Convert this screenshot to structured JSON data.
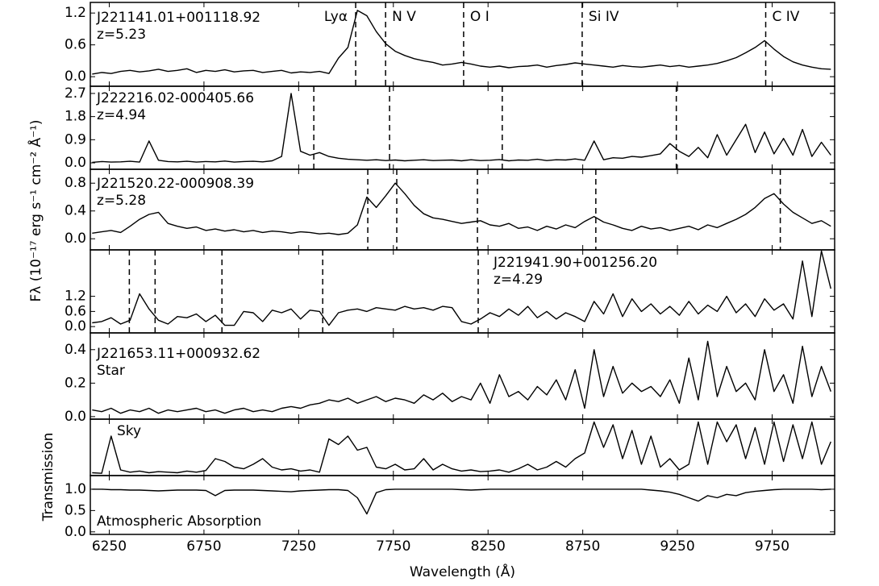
{
  "chart_data": [
    {
      "type": "line",
      "title": "J221141.01+001118.92",
      "subtitle": "z=5.23",
      "color": "#000000",
      "x": [
        6160,
        6210,
        6260,
        6310,
        6360,
        6410,
        6460,
        6510,
        6560,
        6610,
        6660,
        6710,
        6760,
        6810,
        6860,
        6910,
        6960,
        7010,
        7060,
        7110,
        7160,
        7210,
        7260,
        7310,
        7360,
        7410,
        7460,
        7510,
        7560,
        7610,
        7660,
        7710,
        7760,
        7810,
        7860,
        7910,
        7960,
        8010,
        8060,
        8110,
        8160,
        8210,
        8260,
        8310,
        8360,
        8410,
        8460,
        8510,
        8560,
        8610,
        8660,
        8710,
        8760,
        8810,
        8860,
        8910,
        8960,
        9010,
        9060,
        9110,
        9160,
        9210,
        9260,
        9310,
        9360,
        9410,
        9460,
        9510,
        9560,
        9610,
        9660,
        9710,
        9760,
        9810,
        9860,
        9910,
        9960,
        10010,
        10060
      ],
      "values": [
        0.05,
        0.08,
        0.06,
        0.1,
        0.12,
        0.09,
        0.11,
        0.14,
        0.1,
        0.12,
        0.15,
        0.08,
        0.12,
        0.1,
        0.13,
        0.09,
        0.11,
        0.12,
        0.08,
        0.1,
        0.12,
        0.07,
        0.09,
        0.08,
        0.1,
        0.06,
        0.35,
        0.55,
        1.25,
        1.15,
        0.85,
        0.62,
        0.48,
        0.4,
        0.34,
        0.3,
        0.27,
        0.22,
        0.24,
        0.27,
        0.24,
        0.2,
        0.18,
        0.2,
        0.17,
        0.19,
        0.2,
        0.22,
        0.18,
        0.21,
        0.23,
        0.26,
        0.24,
        0.22,
        0.2,
        0.18,
        0.21,
        0.19,
        0.18,
        0.2,
        0.22,
        0.19,
        0.21,
        0.18,
        0.2,
        0.22,
        0.25,
        0.3,
        0.36,
        0.45,
        0.55,
        0.68,
        0.52,
        0.38,
        0.28,
        0.22,
        0.18,
        0.15,
        0.14
      ],
      "xlim": [
        6150,
        10080
      ],
      "ylim": [
        -0.18,
        1.4
      ],
      "yticks": [
        {
          "value": 0,
          "label": "0.0"
        },
        0.6,
        1.2
      ],
      "markers": [
        7551,
        7709,
        8121,
        8747,
        9716
      ],
      "marker_labels": [
        "Lyα",
        "N V",
        "O I",
        "Si IV",
        "C IV"
      ]
    },
    {
      "type": "line",
      "title": "J222216.02-000405.66",
      "subtitle": "z=4.94",
      "color": "#000000",
      "x": [
        6160,
        6210,
        6260,
        6310,
        6360,
        6410,
        6460,
        6510,
        6560,
        6610,
        6660,
        6710,
        6760,
        6810,
        6860,
        6910,
        6960,
        7010,
        7060,
        7110,
        7160,
        7210,
        7260,
        7310,
        7360,
        7410,
        7460,
        7510,
        7560,
        7610,
        7660,
        7710,
        7760,
        7810,
        7860,
        7910,
        7960,
        8010,
        8060,
        8110,
        8160,
        8210,
        8260,
        8310,
        8360,
        8410,
        8460,
        8510,
        8560,
        8610,
        8660,
        8710,
        8760,
        8810,
        8860,
        8910,
        8960,
        9010,
        9060,
        9110,
        9160,
        9210,
        9260,
        9310,
        9360,
        9410,
        9460,
        9510,
        9560,
        9610,
        9660,
        9710,
        9760,
        9810,
        9860,
        9910,
        9960,
        10010,
        10060
      ],
      "values": [
        0.02,
        0.05,
        0.03,
        0.04,
        0.06,
        0.03,
        0.85,
        0.1,
        0.05,
        0.04,
        0.06,
        0.03,
        0.05,
        0.04,
        0.07,
        0.03,
        0.05,
        0.06,
        0.04,
        0.08,
        0.25,
        2.7,
        0.45,
        0.3,
        0.4,
        0.25,
        0.18,
        0.14,
        0.12,
        0.1,
        0.12,
        0.09,
        0.11,
        0.08,
        0.1,
        0.12,
        0.09,
        0.1,
        0.11,
        0.08,
        0.12,
        0.09,
        0.1,
        0.13,
        0.08,
        0.11,
        0.1,
        0.14,
        0.09,
        0.12,
        0.11,
        0.15,
        0.1,
        0.85,
        0.12,
        0.2,
        0.18,
        0.25,
        0.22,
        0.28,
        0.35,
        0.75,
        0.45,
        0.25,
        0.6,
        0.2,
        1.1,
        0.3,
        0.9,
        1.5,
        0.4,
        1.2,
        0.35,
        0.95,
        0.3,
        1.3,
        0.25,
        0.8,
        0.3
      ],
      "xlim": [
        6150,
        10080
      ],
      "ylim": [
        -0.25,
        2.98
      ],
      "yticks": [
        {
          "value": 0,
          "label": "0.0"
        },
        0.9,
        1.8,
        2.7
      ],
      "markers": [
        7330,
        7730,
        8325,
        9244
      ]
    },
    {
      "type": "line",
      "title": "J221520.22-000908.39",
      "subtitle": "z=5.28",
      "color": "#000000",
      "ylabel": "Fλ (10⁻¹⁷ erg s⁻¹ cm⁻² Å⁻¹)",
      "x": [
        6160,
        6210,
        6260,
        6310,
        6360,
        6410,
        6460,
        6510,
        6560,
        6610,
        6660,
        6710,
        6760,
        6810,
        6860,
        6910,
        6960,
        7010,
        7060,
        7110,
        7160,
        7210,
        7260,
        7310,
        7360,
        7410,
        7460,
        7510,
        7560,
        7610,
        7660,
        7710,
        7760,
        7810,
        7860,
        7910,
        7960,
        8010,
        8060,
        8110,
        8160,
        8210,
        8260,
        8310,
        8360,
        8410,
        8460,
        8510,
        8560,
        8610,
        8660,
        8710,
        8760,
        8810,
        8860,
        8910,
        8960,
        9010,
        9060,
        9110,
        9160,
        9210,
        9260,
        9310,
        9360,
        9410,
        9460,
        9510,
        9560,
        9610,
        9660,
        9710,
        9760,
        9810,
        9860,
        9910,
        9960,
        10010,
        10060
      ],
      "values": [
        0.08,
        0.1,
        0.12,
        0.09,
        0.18,
        0.28,
        0.35,
        0.38,
        0.22,
        0.18,
        0.15,
        0.17,
        0.12,
        0.14,
        0.11,
        0.13,
        0.1,
        0.12,
        0.09,
        0.11,
        0.1,
        0.08,
        0.1,
        0.09,
        0.07,
        0.08,
        0.06,
        0.08,
        0.2,
        0.6,
        0.45,
        0.62,
        0.8,
        0.65,
        0.48,
        0.36,
        0.3,
        0.28,
        0.25,
        0.22,
        0.24,
        0.26,
        0.2,
        0.18,
        0.22,
        0.15,
        0.17,
        0.12,
        0.18,
        0.14,
        0.2,
        0.16,
        0.25,
        0.32,
        0.24,
        0.2,
        0.15,
        0.12,
        0.18,
        0.14,
        0.16,
        0.12,
        0.15,
        0.18,
        0.13,
        0.2,
        0.16,
        0.22,
        0.28,
        0.35,
        0.45,
        0.58,
        0.65,
        0.5,
        0.38,
        0.3,
        0.22,
        0.26,
        0.18
      ],
      "xlim": [
        6150,
        10080
      ],
      "ylim": [
        -0.16,
        1.0
      ],
      "yticks": [
        {
          "value": 0,
          "label": "0.0"
        },
        0.4,
        0.8
      ],
      "markers": [
        7615,
        7768,
        8194,
        8819,
        9793
      ]
    },
    {
      "type": "line",
      "title": "J221941.90+001256.20",
      "subtitle": "z=4.29",
      "color": "#000000",
      "x": [
        6160,
        6210,
        6260,
        6310,
        6360,
        6410,
        6460,
        6510,
        6560,
        6610,
        6660,
        6710,
        6760,
        6810,
        6860,
        6910,
        6960,
        7010,
        7060,
        7110,
        7160,
        7210,
        7260,
        7310,
        7360,
        7410,
        7460,
        7510,
        7560,
        7610,
        7660,
        7710,
        7760,
        7810,
        7860,
        7910,
        7960,
        8010,
        8060,
        8110,
        8160,
        8210,
        8260,
        8310,
        8360,
        8410,
        8460,
        8510,
        8560,
        8610,
        8660,
        8710,
        8760,
        8810,
        8860,
        8910,
        8960,
        9010,
        9060,
        9110,
        9160,
        9210,
        9260,
        9310,
        9360,
        9410,
        9460,
        9510,
        9560,
        9610,
        9660,
        9710,
        9760,
        9810,
        9860,
        9910,
        9960,
        10010,
        10060
      ],
      "values": [
        0.15,
        0.2,
        0.35,
        0.1,
        0.25,
        1.3,
        0.7,
        0.25,
        0.1,
        0.4,
        0.35,
        0.5,
        0.2,
        0.45,
        0.05,
        0.05,
        0.6,
        0.55,
        0.2,
        0.65,
        0.55,
        0.7,
        0.3,
        0.65,
        0.6,
        0.05,
        0.55,
        0.65,
        0.7,
        0.6,
        0.75,
        0.7,
        0.65,
        0.8,
        0.7,
        0.75,
        0.65,
        0.8,
        0.75,
        0.2,
        0.1,
        0.3,
        0.55,
        0.4,
        0.7,
        0.45,
        0.8,
        0.35,
        0.6,
        0.3,
        0.55,
        0.4,
        0.2,
        1.0,
        0.5,
        1.3,
        0.4,
        1.1,
        0.6,
        0.9,
        0.5,
        0.8,
        0.45,
        1.0,
        0.5,
        0.85,
        0.6,
        1.2,
        0.55,
        0.9,
        0.4,
        1.1,
        0.65,
        0.9,
        0.3,
        2.6,
        0.4,
        3.0,
        1.5
      ],
      "xlim": [
        6150,
        10080
      ],
      "ylim": [
        -0.25,
        3.04
      ],
      "yticks": [
        {
          "value": 0,
          "label": "0.0"
        },
        0.6,
        1.2
      ],
      "markers": [
        6356,
        6492,
        6845,
        7377,
        8198
      ]
    },
    {
      "type": "line",
      "title": "J221653.11+000932.62",
      "subtitle": "Star",
      "color": "#000000",
      "x": [
        6160,
        6210,
        6260,
        6310,
        6360,
        6410,
        6460,
        6510,
        6560,
        6610,
        6660,
        6710,
        6760,
        6810,
        6860,
        6910,
        6960,
        7010,
        7060,
        7110,
        7160,
        7210,
        7260,
        7310,
        7360,
        7410,
        7460,
        7510,
        7560,
        7610,
        7660,
        7710,
        7760,
        7810,
        7860,
        7910,
        7960,
        8010,
        8060,
        8110,
        8160,
        8210,
        8260,
        8310,
        8360,
        8410,
        8460,
        8510,
        8560,
        8610,
        8660,
        8710,
        8760,
        8810,
        8860,
        8910,
        8960,
        9010,
        9060,
        9110,
        9160,
        9210,
        9260,
        9310,
        9360,
        9410,
        9460,
        9510,
        9560,
        9610,
        9660,
        9710,
        9760,
        9810,
        9860,
        9910,
        9960,
        10010,
        10060
      ],
      "values": [
        0.04,
        0.03,
        0.05,
        0.02,
        0.04,
        0.03,
        0.05,
        0.02,
        0.04,
        0.03,
        0.04,
        0.05,
        0.03,
        0.04,
        0.02,
        0.04,
        0.05,
        0.03,
        0.04,
        0.03,
        0.05,
        0.06,
        0.05,
        0.07,
        0.08,
        0.1,
        0.09,
        0.11,
        0.08,
        0.1,
        0.12,
        0.09,
        0.11,
        0.1,
        0.08,
        0.13,
        0.1,
        0.14,
        0.09,
        0.12,
        0.1,
        0.2,
        0.08,
        0.25,
        0.12,
        0.15,
        0.1,
        0.18,
        0.13,
        0.22,
        0.1,
        0.28,
        0.05,
        0.4,
        0.12,
        0.3,
        0.14,
        0.2,
        0.15,
        0.18,
        0.12,
        0.22,
        0.08,
        0.35,
        0.1,
        0.45,
        0.12,
        0.3,
        0.15,
        0.2,
        0.1,
        0.4,
        0.15,
        0.25,
        0.08,
        0.42,
        0.12,
        0.3,
        0.15
      ],
      "xlim": [
        6150,
        10080
      ],
      "ylim": [
        -0.015,
        0.5
      ],
      "yticks": [
        {
          "value": 0,
          "label": "0.0"
        },
        0.2,
        0.4
      ]
    },
    {
      "type": "line",
      "title": "Sky",
      "color": "#000000",
      "x": [
        6160,
        6210,
        6260,
        6310,
        6360,
        6410,
        6460,
        6510,
        6560,
        6610,
        6660,
        6710,
        6760,
        6810,
        6860,
        6910,
        6960,
        7010,
        7060,
        7110,
        7160,
        7210,
        7260,
        7310,
        7360,
        7410,
        7460,
        7510,
        7560,
        7610,
        7660,
        7710,
        7760,
        7810,
        7860,
        7910,
        7960,
        8010,
        8060,
        8110,
        8160,
        8210,
        8260,
        8310,
        8360,
        8410,
        8460,
        8510,
        8560,
        8610,
        8660,
        8710,
        8760,
        8810,
        8860,
        8910,
        8960,
        9010,
        9060,
        9110,
        9160,
        9210,
        9260,
        9310,
        9360,
        9410,
        9460,
        9510,
        9560,
        9610,
        9660,
        9710,
        9760,
        9810,
        9860,
        9910,
        9960,
        10010,
        10060
      ],
      "values": [
        0.05,
        0.04,
        0.7,
        0.1,
        0.06,
        0.08,
        0.05,
        0.07,
        0.06,
        0.05,
        0.08,
        0.06,
        0.09,
        0.3,
        0.25,
        0.15,
        0.12,
        0.2,
        0.3,
        0.15,
        0.1,
        0.12,
        0.08,
        0.1,
        0.06,
        0.65,
        0.55,
        0.7,
        0.45,
        0.5,
        0.15,
        0.12,
        0.2,
        0.1,
        0.12,
        0.3,
        0.1,
        0.2,
        0.12,
        0.08,
        0.1,
        0.07,
        0.08,
        0.1,
        0.06,
        0.12,
        0.2,
        0.1,
        0.15,
        0.25,
        0.15,
        0.3,
        0.4,
        0.95,
        0.5,
        0.9,
        0.3,
        0.8,
        0.2,
        0.7,
        0.15,
        0.3,
        0.1,
        0.2,
        0.95,
        0.2,
        0.95,
        0.6,
        0.9,
        0.3,
        0.85,
        0.2,
        0.95,
        0.25,
        0.9,
        0.3,
        0.95,
        0.2,
        0.6
      ],
      "xlim": [
        6150,
        10080
      ],
      "ylim": [
        0,
        1
      ]
    },
    {
      "type": "line",
      "title": "Atmospheric Absorption",
      "color": "#000000",
      "ylabel": "Transmission",
      "xlabel": "Wavelength (Å)",
      "x": [
        6160,
        6210,
        6260,
        6310,
        6360,
        6410,
        6460,
        6510,
        6560,
        6610,
        6660,
        6710,
        6760,
        6810,
        6860,
        6910,
        6960,
        7010,
        7060,
        7110,
        7160,
        7210,
        7260,
        7310,
        7360,
        7410,
        7460,
        7510,
        7560,
        7610,
        7660,
        7710,
        7760,
        7810,
        7860,
        7910,
        7960,
        8010,
        8060,
        8110,
        8160,
        8210,
        8260,
        8310,
        8360,
        8410,
        8460,
        8510,
        8560,
        8610,
        8660,
        8710,
        8760,
        8810,
        8860,
        8910,
        8960,
        9010,
        9060,
        9110,
        9160,
        9210,
        9260,
        9310,
        9360,
        9410,
        9460,
        9510,
        9560,
        9610,
        9660,
        9710,
        9760,
        9810,
        9860,
        9910,
        9960,
        10010,
        10060
      ],
      "values": [
        1.0,
        1.0,
        0.99,
        0.99,
        0.98,
        0.98,
        0.97,
        0.96,
        0.97,
        0.98,
        0.98,
        0.98,
        0.97,
        0.85,
        0.97,
        0.98,
        0.98,
        0.98,
        0.97,
        0.96,
        0.95,
        0.94,
        0.96,
        0.97,
        0.98,
        0.99,
        0.99,
        0.97,
        0.8,
        0.42,
        0.92,
        0.99,
        1.0,
        1.0,
        1.0,
        1.0,
        1.0,
        1.0,
        1.0,
        0.99,
        0.98,
        0.99,
        1.0,
        1.0,
        1.0,
        1.0,
        1.0,
        1.0,
        1.0,
        1.0,
        1.0,
        1.0,
        1.0,
        1.0,
        1.0,
        1.0,
        1.0,
        1.0,
        1.0,
        0.98,
        0.96,
        0.93,
        0.88,
        0.8,
        0.72,
        0.85,
        0.8,
        0.88,
        0.85,
        0.92,
        0.95,
        0.97,
        0.99,
        1.0,
        1.0,
        1.0,
        1.0,
        0.99,
        1.0
      ],
      "xlim": [
        6150,
        10080
      ],
      "ylim": [
        -0.06,
        1.32
      ],
      "yticks": [
        {
          "value": 0,
          "label": "0.0"
        },
        0.5,
        {
          "value": 1,
          "label": "1.0"
        }
      ],
      "xticks": [
        6250,
        6750,
        7250,
        7750,
        8250,
        8750,
        9250,
        9750
      ]
    }
  ]
}
